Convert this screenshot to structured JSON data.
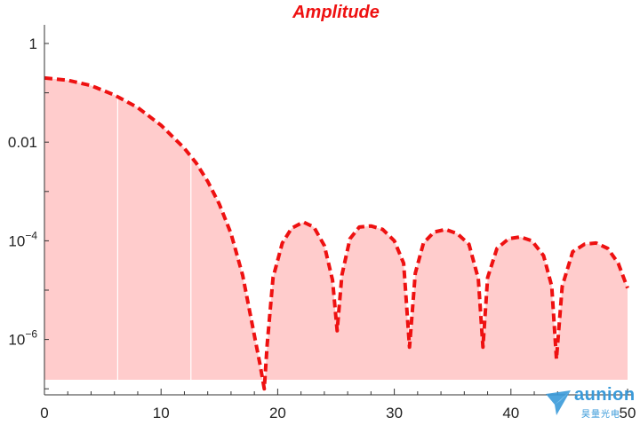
{
  "chart_data": {
    "type": "area",
    "title": "Amplitude",
    "xlabel": "",
    "ylabel": "",
    "xlim": [
      0,
      50
    ],
    "ylim": [
      1e-07,
      2
    ],
    "y_scale": "log",
    "x_ticks": [
      0,
      10,
      20,
      30,
      40,
      50
    ],
    "x_tick_labels": [
      "0",
      "10",
      "20",
      "30",
      "40",
      "50"
    ],
    "y_ticks": [
      1,
      0.01,
      0.0001,
      1e-06
    ],
    "y_tick_labels": [
      {
        "base": "1",
        "exp": ""
      },
      {
        "base": "0.01",
        "exp": ""
      },
      {
        "base": "10",
        "exp": "−4"
      },
      {
        "base": "10",
        "exp": "−6"
      }
    ],
    "grid": false,
    "series": [
      {
        "style": "dashed",
        "color": "#ee1111",
        "fill_color": "#ffcccc",
        "x": [
          0,
          2,
          4,
          6,
          8,
          10,
          12,
          13,
          14,
          15,
          16,
          17,
          18,
          18.5,
          18.85,
          19.1,
          19.6,
          20.4,
          21.2,
          22.2,
          23.1,
          24.0,
          24.7,
          25.1,
          25.5,
          26.2,
          27.0,
          28.0,
          29.0,
          30.0,
          30.8,
          31.3,
          31.8,
          32.5,
          33.4,
          34.4,
          35.4,
          36.4,
          37.2,
          37.6,
          38.0,
          38.8,
          39.8,
          40.8,
          41.8,
          42.8,
          43.5,
          43.9,
          44.4,
          45.3,
          46.3,
          47.3,
          48.3,
          49.2,
          50.0
        ],
        "y": [
          0.2,
          0.18,
          0.14,
          0.09,
          0.05,
          0.022,
          0.0075,
          0.0038,
          0.0016,
          0.00055,
          0.00014,
          2e-05,
          1.2e-06,
          3e-07,
          1e-07,
          8e-07,
          1.8e-05,
          9e-05,
          0.00018,
          0.00024,
          0.00019,
          8e-05,
          1.6e-05,
          1.5e-06,
          2e-05,
          0.00011,
          0.00019,
          0.0002,
          0.00017,
          0.0001,
          3.5e-05,
          7e-07,
          2.2e-05,
          9e-05,
          0.00015,
          0.00017,
          0.00014,
          8.5e-05,
          1.7e-05,
          7e-07,
          1.8e-05,
          7e-05,
          0.00011,
          0.00012,
          0.0001,
          5e-05,
          1.2e-05,
          4e-07,
          1.2e-05,
          6e-05,
          8.5e-05,
          9e-05,
          7e-05,
          3.5e-05,
          1.1e-05
        ]
      }
    ],
    "reference_lines_x": [
      6.28,
      12.56
    ]
  },
  "watermark": {
    "name": "aunion",
    "subtitle": "昊量光电"
  }
}
